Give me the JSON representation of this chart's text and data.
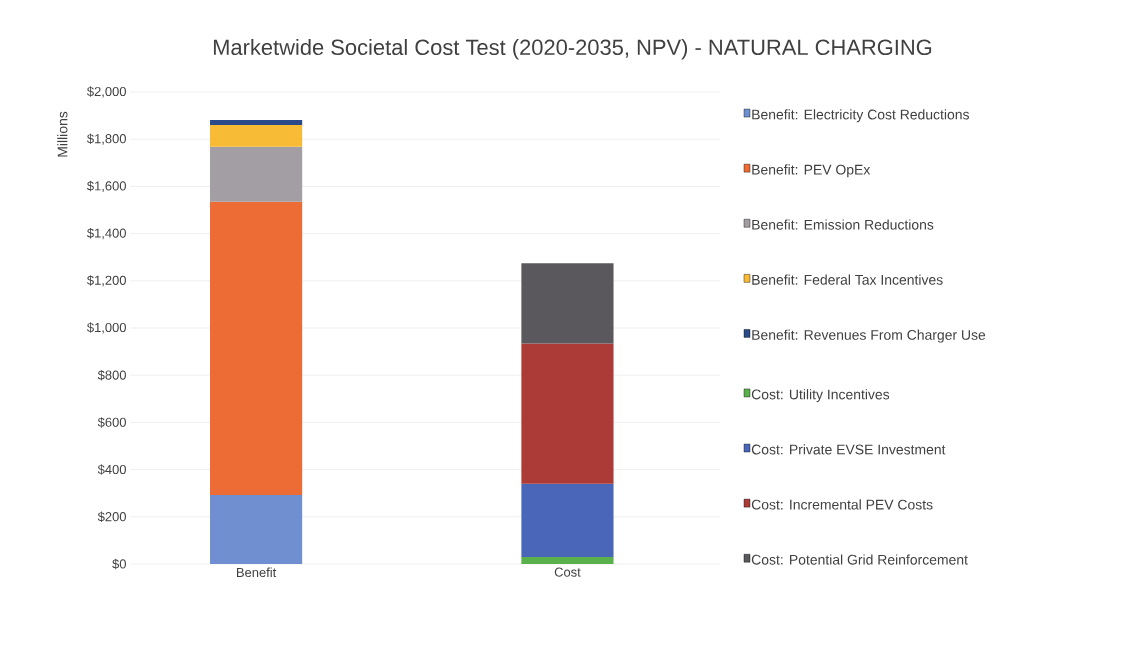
{
  "chart_data": {
    "type": "bar",
    "title": "Marketwide Societal Cost Test (2020-2035, NPV) - NATURAL CHARGING",
    "ylabel": "Millions",
    "categories": [
      "Benefit",
      "Cost"
    ],
    "stacked": true,
    "grid": "y",
    "legend": "right",
    "ylim": [
      0,
      2000
    ],
    "yticks": [
      {
        "value": 0,
        "label": "$0"
      },
      {
        "value": 200,
        "label": "$200"
      },
      {
        "value": 400,
        "label": "$400"
      },
      {
        "value": 600,
        "label": "$600"
      },
      {
        "value": 800,
        "label": "$800"
      },
      {
        "value": 1000,
        "label": "$1,000"
      },
      {
        "value": 1200,
        "label": "$1,200"
      },
      {
        "value": 1400,
        "label": "$1,400"
      },
      {
        "value": 1600,
        "label": "$1,600"
      },
      {
        "value": 1800,
        "label": "$1,800"
      },
      {
        "value": 2000,
        "label": "$2,000"
      }
    ],
    "series": [
      {
        "name": "Benefit: Electricity Cost Reductions",
        "color": "#6f8fd0",
        "values": [
          292,
          null
        ]
      },
      {
        "name": "Benefit: PEV OpEx",
        "color": "#ed6b35",
        "values": [
          1243,
          null
        ]
      },
      {
        "name": "Benefit: Emission Reductions",
        "color": "#a39ea3",
        "values": [
          233,
          null
        ]
      },
      {
        "name": "Benefit: Federal Tax Incentives",
        "color": "#f8bb35",
        "values": [
          92,
          null
        ]
      },
      {
        "name": "Benefit: Revenues From Charger Use",
        "color": "#2a4a8a",
        "values": [
          21,
          null
        ]
      },
      {
        "name": "Cost: Utility Incentives",
        "color": "#5ab04a",
        "values": [
          null,
          30
        ]
      },
      {
        "name": "Cost: Private EVSE Investment",
        "color": "#4a66b8",
        "values": [
          null,
          310
        ]
      },
      {
        "name": "Cost: Incremental PEV Costs",
        "color": "#ac3a36",
        "values": [
          null,
          594
        ]
      },
      {
        "name": "Cost: Potential Grid Reinforcement",
        "color": "#5a585c",
        "values": [
          null,
          340
        ]
      }
    ]
  }
}
